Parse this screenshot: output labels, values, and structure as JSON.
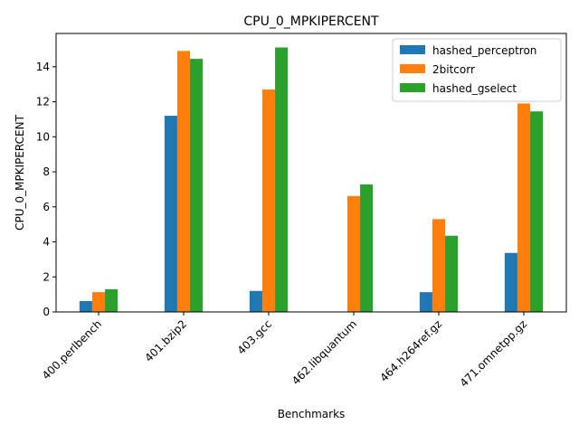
{
  "chart_data": {
    "type": "bar",
    "title": "CPU_0_MPKIPERCENT",
    "xlabel": "Benchmarks",
    "ylabel": "CPU_0_MPKIPERCENT",
    "categories": [
      "400.perlbench",
      "401.bzip2",
      "403.gcc",
      "462.libquantum",
      "464.h264ref.gz",
      "471.omnetpp.gz"
    ],
    "ylim": [
      0,
      15.9
    ],
    "yticks": [
      0,
      2,
      4,
      6,
      8,
      10,
      12,
      14
    ],
    "grid": false,
    "legend_position": "top-right",
    "series": [
      {
        "name": "hashed_perceptron",
        "color": "#1f77b4",
        "values": [
          0.62,
          11.2,
          1.2,
          0.0,
          1.13,
          3.37
        ]
      },
      {
        "name": "2bitcorr",
        "color": "#ff7f0e",
        "values": [
          1.13,
          14.9,
          12.7,
          6.62,
          5.3,
          11.9
        ]
      },
      {
        "name": "hashed_gselect",
        "color": "#2ca02c",
        "values": [
          1.3,
          14.45,
          15.1,
          7.28,
          4.35,
          11.45
        ]
      }
    ]
  }
}
